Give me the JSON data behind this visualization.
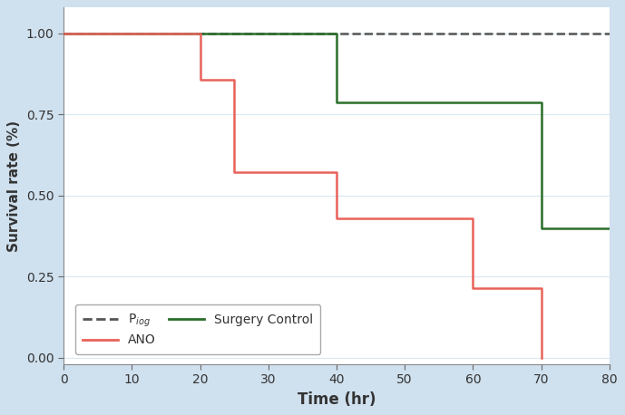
{
  "title": "",
  "xlabel": "Time (hr)",
  "ylabel": "Survival rate (%)",
  "background_color": "#cfe0ee",
  "plot_background": "#ffffff",
  "xlim": [
    0,
    80
  ],
  "ylim": [
    -0.02,
    1.08
  ],
  "xticks": [
    0,
    10,
    20,
    30,
    40,
    50,
    60,
    70,
    80
  ],
  "yticks": [
    0.0,
    0.25,
    0.5,
    0.75,
    1.0
  ],
  "piog": {
    "x": [
      0,
      80
    ],
    "y": [
      1.0,
      1.0
    ],
    "color": "#555555",
    "linestyle": "dashed",
    "linewidth": 1.8,
    "label": "P$_{iog}$"
  },
  "ano": {
    "x": [
      0,
      20,
      20,
      25,
      25,
      40,
      40,
      60,
      60,
      70,
      70,
      70
    ],
    "y": [
      1.0,
      1.0,
      0.857,
      0.857,
      0.571,
      0.571,
      0.429,
      0.429,
      0.214,
      0.214,
      0.0,
      0.0
    ],
    "color": "#e8625a",
    "linestyle": "solid",
    "linewidth": 1.8,
    "label": "ANO"
  },
  "surgery_control": {
    "x": [
      0,
      40,
      40,
      70,
      70,
      80
    ],
    "y": [
      1.0,
      1.0,
      0.786,
      0.786,
      0.4,
      0.4
    ],
    "color": "#2a6e2a",
    "linestyle": "solid",
    "linewidth": 1.8,
    "label": "Surgery Control"
  },
  "legend_fontsize": 10,
  "grid_color": "#d8e8f0",
  "grid_linewidth": 0.8,
  "tick_labelsize": 10,
  "xlabel_fontsize": 12,
  "ylabel_fontsize": 11
}
